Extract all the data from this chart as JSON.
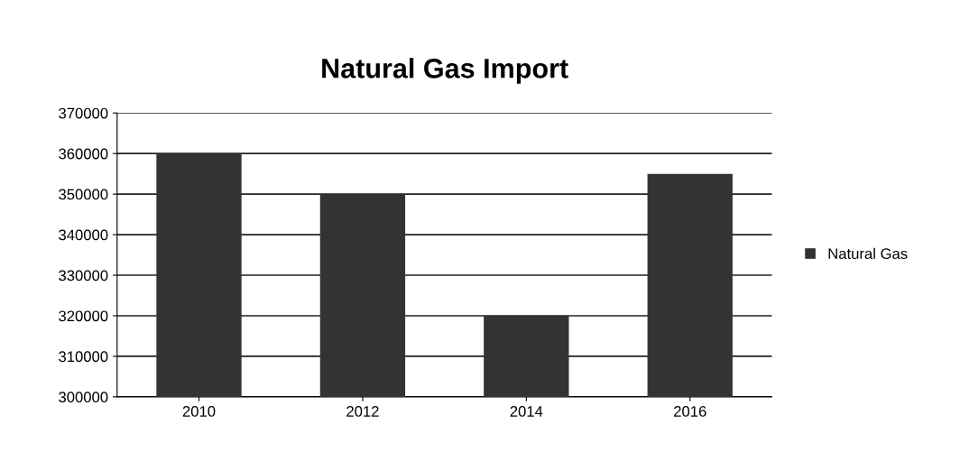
{
  "chart_data": {
    "type": "bar",
    "title": "Natural Gas Import",
    "categories": [
      "2010",
      "2012",
      "2014",
      "2016"
    ],
    "series": [
      {
        "name": "Natural Gas",
        "color": "#333333",
        "values": [
          360000,
          350000,
          320000,
          355000
        ]
      }
    ],
    "ylim": [
      300000,
      370000
    ],
    "yticks": [
      300000,
      310000,
      320000,
      330000,
      340000,
      350000,
      360000,
      370000
    ],
    "grid": "y",
    "legend": "right"
  }
}
